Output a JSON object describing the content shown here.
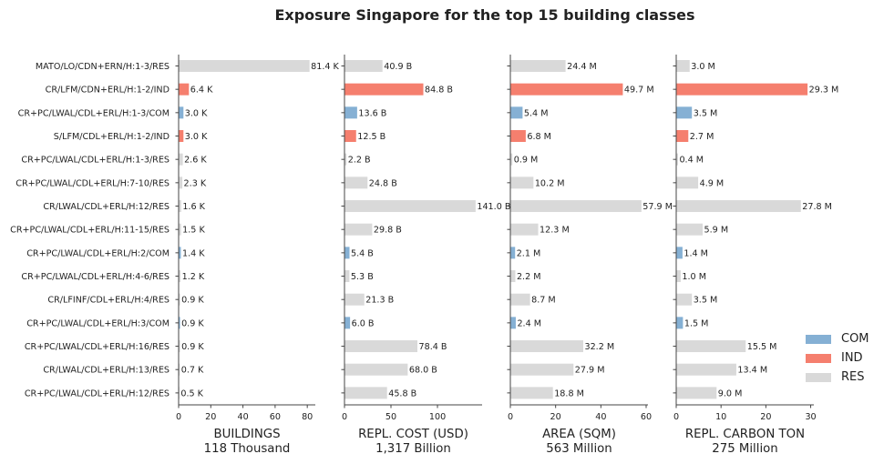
{
  "chart_data": {
    "type": "bar",
    "orientation": "horizontal",
    "title": "Exposure Singapore for the top 15 building classes",
    "categories": [
      "MATO/LO/CDN+ERN/H:1-3/RES",
      "CR/LFM/CDN+ERL/H:1-2/IND",
      "CR+PC/LWAL/CDL+ERL/H:1-3/COM",
      "S/LFM/CDL+ERL/H:1-2/IND",
      "CR+PC/LWAL/CDL+ERL/H:1-3/RES",
      "CR+PC/LWAL/CDL+ERL/H:7-10/RES",
      "CR/LWAL/CDL+ERL/H:12/RES",
      "CR+PC/LWAL/CDL+ERL/H:11-15/RES",
      "CR+PC/LWAL/CDL+ERL/H:2/COM",
      "CR+PC/LWAL/CDL+ERL/H:4-6/RES",
      "CR/LFINF/CDL+ERL/H:4/RES",
      "CR+PC/LWAL/CDL+ERL/H:3/COM",
      "CR+PC/LWAL/CDL+ERL/H:16/RES",
      "CR/LWAL/CDL+ERL/H:13/RES",
      "CR+PC/LWAL/CDL+ERL/H:12/RES"
    ],
    "occupancy": [
      "RES",
      "IND",
      "COM",
      "IND",
      "RES",
      "RES",
      "RES",
      "RES",
      "COM",
      "RES",
      "RES",
      "COM",
      "RES",
      "RES",
      "RES"
    ],
    "panels": [
      {
        "xlabel": "BUILDINGS",
        "total": "118 Thousand",
        "xlim": [
          0,
          85
        ],
        "ticks": [
          0,
          20,
          40,
          60,
          80
        ],
        "values": [
          81.4,
          6.4,
          3.0,
          3.0,
          2.6,
          2.3,
          1.6,
          1.5,
          1.4,
          1.2,
          0.9,
          0.9,
          0.9,
          0.7,
          0.5
        ],
        "labels": [
          "81.4 K",
          "6.4 K",
          "3.0 K",
          "3.0 K",
          "2.6 K",
          "2.3 K",
          "1.6 K",
          "1.5 K",
          "1.4 K",
          "1.2 K",
          "0.9 K",
          "0.9 K",
          "0.9 K",
          "0.7 K",
          "0.5 K"
        ]
      },
      {
        "xlabel": "REPL. COST (USD)",
        "total": "1,317 Billion",
        "xlim": [
          0,
          148
        ],
        "ticks": [
          0,
          50,
          100
        ],
        "values": [
          40.9,
          84.8,
          13.6,
          12.5,
          2.2,
          24.8,
          141.0,
          29.8,
          5.4,
          5.3,
          21.3,
          6.0,
          78.4,
          68.0,
          45.8
        ],
        "labels": [
          "40.9 B",
          "84.8 B",
          "13.6 B",
          "12.5 B",
          "2.2 B",
          "24.8 B",
          "141.0 B",
          "29.8 B",
          "5.4 B",
          "5.3 B",
          "21.3 B",
          "6.0 B",
          "78.4 B",
          "68.0 B",
          "45.8 B"
        ]
      },
      {
        "xlabel": "AREA (SQM)",
        "total": "563 Million",
        "xlim": [
          0,
          60.8
        ],
        "ticks": [
          0,
          20,
          40,
          60
        ],
        "values": [
          24.4,
          49.7,
          5.4,
          6.8,
          0.9,
          10.2,
          57.9,
          12.3,
          2.1,
          2.2,
          8.7,
          2.4,
          32.2,
          27.9,
          18.8
        ],
        "labels": [
          "24.4 M",
          "49.7 M",
          "5.4 M",
          "6.8 M",
          "0.9 M",
          "10.2 M",
          "57.9 M",
          "12.3 M",
          "2.1 M",
          "2.2 M",
          "8.7 M",
          "2.4 M",
          "32.2 M",
          "27.9 M",
          "18.8 M"
        ]
      },
      {
        "xlabel": "REPL. CARBON TON",
        "total": "275 Million",
        "xlim": [
          0,
          30.7
        ],
        "ticks": [
          0,
          10,
          20,
          30
        ],
        "values": [
          3.0,
          29.3,
          3.5,
          2.7,
          0.4,
          4.9,
          27.8,
          5.9,
          1.4,
          1.0,
          3.5,
          1.5,
          15.5,
          13.4,
          9.0
        ],
        "labels": [
          "3.0 M",
          "29.3 M",
          "3.5 M",
          "2.7 M",
          "0.4 M",
          "4.9 M",
          "27.8 M",
          "5.9 M",
          "1.4 M",
          "1.0 M",
          "3.5 M",
          "1.5 M",
          "15.5 M",
          "13.4 M",
          "9.0 M"
        ]
      }
    ],
    "legend": {
      "placement": "lower-right",
      "entries": [
        {
          "name": "COM",
          "color": "#85b0d4"
        },
        {
          "name": "IND",
          "color": "#f57f6e"
        },
        {
          "name": "RES",
          "color": "#d9d9d9"
        }
      ]
    },
    "colors": {
      "COM": "#85b0d4",
      "IND": "#f57f6e",
      "RES": "#d9d9d9"
    },
    "grid": false
  }
}
